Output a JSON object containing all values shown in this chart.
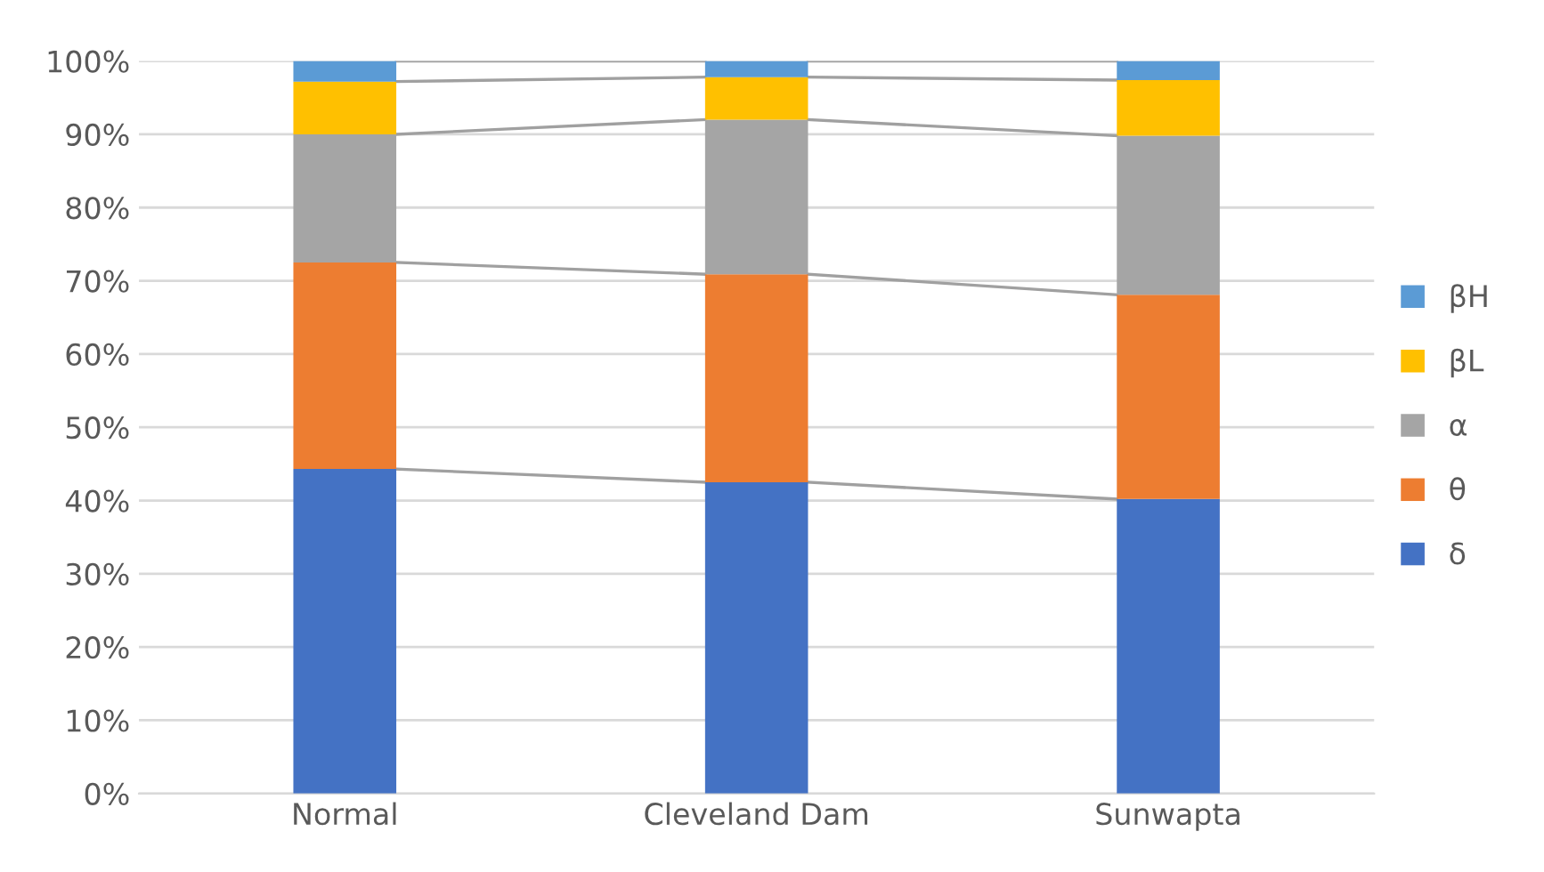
{
  "chart_data": {
    "type": "bar",
    "stacked": true,
    "categories": [
      "Normal",
      "Cleveland Dam",
      "Sunwapta"
    ],
    "series": [
      {
        "name": "δ",
        "color": "#4472c4",
        "values": [
          44.3,
          42.5,
          40.2
        ]
      },
      {
        "name": "θ",
        "color": "#ed7d31",
        "values": [
          28.2,
          28.4,
          27.9
        ]
      },
      {
        "name": "α",
        "color": "#a5a5a5",
        "values": [
          17.5,
          21.1,
          21.7
        ]
      },
      {
        "name": "βL",
        "color": "#ffc000",
        "values": [
          7.2,
          5.8,
          7.6
        ]
      },
      {
        "name": "βH",
        "color": "#5b9bd5",
        "values": [
          2.8,
          2.2,
          2.6
        ]
      }
    ],
    "ylim": [
      0,
      100
    ],
    "yticks": [
      {
        "value": 0,
        "label": "0%"
      },
      {
        "value": 10,
        "label": "10%"
      },
      {
        "value": 20,
        "label": "20%"
      },
      {
        "value": 30,
        "label": "30%"
      },
      {
        "value": 40,
        "label": "40%"
      },
      {
        "value": 50,
        "label": "50%"
      },
      {
        "value": 60,
        "label": "60%"
      },
      {
        "value": 70,
        "label": "70%"
      },
      {
        "value": 80,
        "label": "80%"
      },
      {
        "value": 90,
        "label": "90%"
      },
      {
        "value": 100,
        "label": "100%"
      }
    ],
    "grid": "y",
    "legend": "right"
  }
}
